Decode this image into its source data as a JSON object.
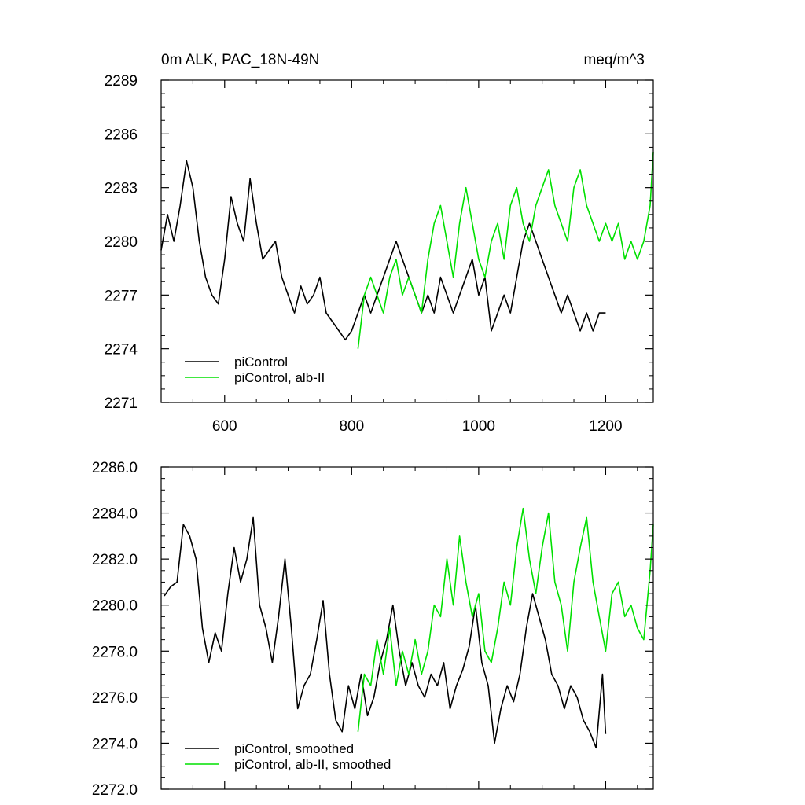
{
  "chart_data": [
    {
      "type": "line",
      "title_left": "0m ALK, PAC_18N-49N",
      "title_right": "meq/m^3",
      "xlim": [
        500,
        1275
      ],
      "ylim": [
        2271,
        2289
      ],
      "xticks": [
        "600",
        "800",
        "1000",
        "1200"
      ],
      "xtick_values": [
        600,
        800,
        1000,
        1200
      ],
      "yticks": [
        "2271",
        "2274",
        "2277",
        "2280",
        "2283",
        "2286",
        "2289"
      ],
      "ytick_values": [
        2271,
        2274,
        2277,
        2280,
        2283,
        2286,
        2289
      ],
      "legend_position": "bottom-left",
      "series": [
        {
          "name": "piControl",
          "color": "#000000",
          "x": [
            500,
            510,
            520,
            530,
            540,
            550,
            560,
            570,
            580,
            590,
            600,
            610,
            620,
            630,
            640,
            650,
            660,
            670,
            680,
            690,
            700,
            710,
            720,
            730,
            740,
            750,
            760,
            770,
            780,
            790,
            800,
            810,
            820,
            830,
            840,
            850,
            860,
            870,
            880,
            890,
            900,
            910,
            920,
            930,
            940,
            950,
            960,
            970,
            980,
            990,
            1000,
            1010,
            1020,
            1030,
            1040,
            1050,
            1060,
            1070,
            1080,
            1090,
            1100,
            1110,
            1120,
            1130,
            1140,
            1150,
            1160,
            1170,
            1180,
            1190,
            1200
          ],
          "values": [
            2279.5,
            2281.5,
            2280,
            2282,
            2284.5,
            2283,
            2280,
            2278,
            2277,
            2276.5,
            2279,
            2282.5,
            2281,
            2280,
            2283.5,
            2281,
            2279,
            2279.5,
            2280,
            2278,
            2277,
            2276,
            2277.5,
            2276.5,
            2277,
            2278,
            2276,
            2275.5,
            2275,
            2274.5,
            2275,
            2276,
            2277,
            2276,
            2277,
            2278,
            2279,
            2280,
            2279,
            2278,
            2277,
            2276,
            2277,
            2276,
            2278,
            2277,
            2276,
            2277,
            2278,
            2279,
            2277,
            2278,
            2275,
            2276,
            2277,
            2276,
            2278,
            2280,
            2281,
            2280,
            2279,
            2278,
            2277,
            2276,
            2277,
            2276,
            2275,
            2276,
            2275,
            2276,
            2276
          ]
        },
        {
          "name": "piControl, alb-II",
          "color": "#00e000",
          "x": [
            810,
            820,
            830,
            840,
            850,
            860,
            870,
            880,
            890,
            900,
            910,
            920,
            930,
            940,
            950,
            960,
            970,
            980,
            990,
            1000,
            1010,
            1020,
            1030,
            1040,
            1050,
            1060,
            1070,
            1080,
            1090,
            1100,
            1110,
            1120,
            1130,
            1140,
            1150,
            1160,
            1170,
            1180,
            1190,
            1200,
            1210,
            1220,
            1230,
            1240,
            1250,
            1260,
            1270,
            1275
          ],
          "values": [
            2274,
            2277,
            2278,
            2277,
            2276,
            2278,
            2279,
            2277,
            2278,
            2277,
            2276,
            2279,
            2281,
            2282,
            2280,
            2278,
            2281,
            2283,
            2281,
            2279,
            2278,
            2280,
            2281,
            2279,
            2282,
            2283,
            2281,
            2280,
            2282,
            2283,
            2284,
            2282,
            2281,
            2280,
            2283,
            2284,
            2282,
            2281,
            2280,
            2281,
            2280,
            2281,
            2279,
            2280,
            2279,
            2280,
            2282,
            2285
          ]
        }
      ]
    },
    {
      "type": "line",
      "xlim": [
        500,
        1275
      ],
      "ylim": [
        2272,
        2286
      ],
      "xticks": [],
      "xtick_values": [
        600,
        800,
        1000,
        1200
      ],
      "yticks": [
        "2272.0",
        "2274.0",
        "2276.0",
        "2278.0",
        "2280.0",
        "2282.0",
        "2284.0",
        "2286.0"
      ],
      "ytick_values": [
        2272,
        2274,
        2276,
        2278,
        2280,
        2282,
        2284,
        2286
      ],
      "legend_position": "bottom-left",
      "series": [
        {
          "name": "piControl, smoothed",
          "color": "#000000",
          "x": [
            505,
            515,
            525,
            535,
            545,
            555,
            565,
            575,
            585,
            595,
            605,
            615,
            625,
            635,
            645,
            655,
            665,
            675,
            685,
            695,
            705,
            715,
            725,
            735,
            745,
            755,
            765,
            775,
            785,
            795,
            805,
            815,
            825,
            835,
            845,
            855,
            865,
            875,
            885,
            895,
            905,
            915,
            925,
            935,
            945,
            955,
            965,
            975,
            985,
            995,
            1005,
            1015,
            1025,
            1035,
            1045,
            1055,
            1065,
            1075,
            1085,
            1095,
            1105,
            1115,
            1125,
            1135,
            1145,
            1155,
            1165,
            1175,
            1185,
            1195,
            1200
          ],
          "values": [
            2280.4,
            2280.8,
            2281,
            2283.5,
            2283,
            2282,
            2279,
            2277.5,
            2278.8,
            2278,
            2280.5,
            2282.5,
            2281,
            2282,
            2283.8,
            2280,
            2279,
            2277.5,
            2279.5,
            2282,
            2279,
            2275.5,
            2276.5,
            2277,
            2278.5,
            2280.2,
            2277,
            2275,
            2274.5,
            2276.5,
            2275.5,
            2277,
            2275.2,
            2276,
            2277.5,
            2278.5,
            2280,
            2278,
            2276.5,
            2277.5,
            2276.5,
            2276,
            2277,
            2276.5,
            2277.5,
            2275.5,
            2276.5,
            2277.2,
            2278.2,
            2280,
            2277.5,
            2276.5,
            2274,
            2275.5,
            2276.5,
            2275.8,
            2277,
            2279,
            2280.5,
            2279.5,
            2278.5,
            2277,
            2276.5,
            2275.5,
            2276.5,
            2276,
            2275,
            2274.5,
            2273.8,
            2277,
            2274.4
          ]
        },
        {
          "name": "piControl, alb-II, smoothed",
          "color": "#00e000",
          "x": [
            810,
            820,
            830,
            840,
            850,
            860,
            870,
            880,
            890,
            900,
            910,
            920,
            930,
            940,
            950,
            960,
            970,
            980,
            990,
            1000,
            1010,
            1020,
            1030,
            1040,
            1050,
            1060,
            1070,
            1080,
            1090,
            1100,
            1110,
            1120,
            1130,
            1140,
            1150,
            1160,
            1170,
            1180,
            1190,
            1200,
            1210,
            1220,
            1230,
            1240,
            1250,
            1260,
            1270,
            1275
          ],
          "values": [
            2274.5,
            2277,
            2276.5,
            2278.5,
            2277,
            2279,
            2276.5,
            2278,
            2277,
            2278.5,
            2277,
            2278,
            2280,
            2279.5,
            2282,
            2280,
            2283,
            2281,
            2279.5,
            2280.5,
            2278,
            2277.5,
            2279,
            2281,
            2280,
            2282.5,
            2284.2,
            2282,
            2280.5,
            2282.5,
            2284,
            2281,
            2280,
            2278,
            2281,
            2282.5,
            2283.8,
            2281,
            2279.5,
            2278,
            2280.5,
            2281,
            2279.5,
            2280,
            2279,
            2278.5,
            2281.5,
            2283.5
          ]
        }
      ]
    }
  ]
}
